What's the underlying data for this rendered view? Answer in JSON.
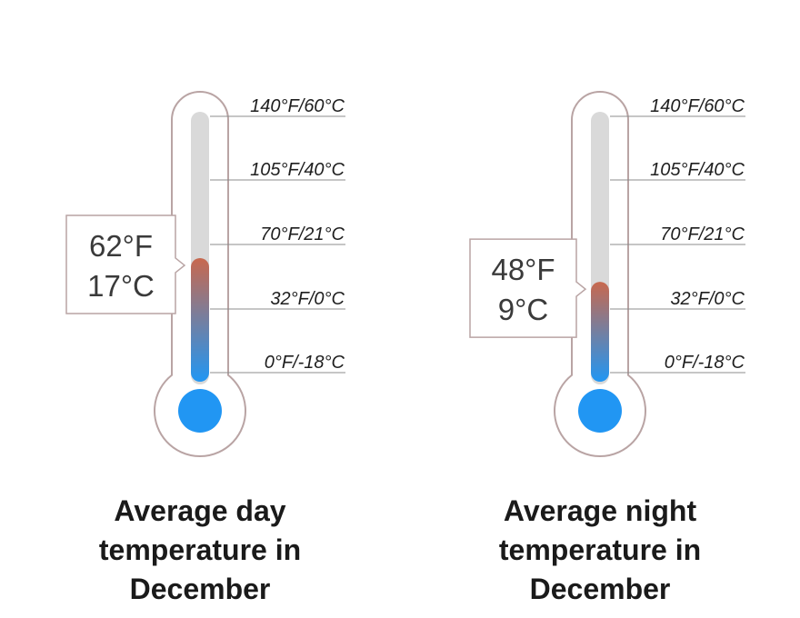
{
  "chart_data": [
    {
      "type": "thermometer",
      "caption_lines": [
        "Average day",
        "temperature in",
        "December"
      ],
      "value_f": 62,
      "reading_lines": [
        "62°F",
        "17°C"
      ],
      "scale": [
        {
          "f": 140,
          "label": "140°F/60°C"
        },
        {
          "f": 105,
          "label": "105°F/40°C"
        },
        {
          "f": 70,
          "label": "70°F/21°C"
        },
        {
          "f": 32,
          "label": "32°F/0°C"
        },
        {
          "f": 0,
          "label": "0°F/-18°C"
        }
      ]
    },
    {
      "type": "thermometer",
      "caption_lines": [
        "Average night",
        "temperature in",
        "December"
      ],
      "value_f": 48,
      "reading_lines": [
        "48°F",
        "9°C"
      ],
      "scale": [
        {
          "f": 140,
          "label": "140°F/60°C"
        },
        {
          "f": 105,
          "label": "105°F/40°C"
        },
        {
          "f": 70,
          "label": "70°F/21°C"
        },
        {
          "f": 32,
          "label": "32°F/0°C"
        },
        {
          "f": 0,
          "label": "0°F/-18°C"
        }
      ]
    }
  ],
  "colors": {
    "outline": "#b9a4a4",
    "track": "#d9d9d9",
    "fill_cold": "#2196f3",
    "fill_warm": "#c8684e",
    "tick_line": "#8c8c8c"
  }
}
